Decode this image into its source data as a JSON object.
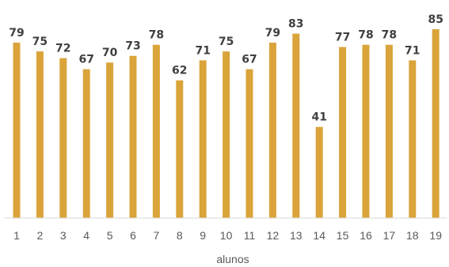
{
  "chart_data": {
    "type": "bar",
    "categories": [
      "1",
      "2",
      "3",
      "4",
      "5",
      "6",
      "7",
      "8",
      "9",
      "10",
      "11",
      "12",
      "13",
      "14",
      "15",
      "16",
      "17",
      "18",
      "19"
    ],
    "values": [
      79,
      75,
      72,
      67,
      70,
      73,
      78,
      62,
      71,
      75,
      67,
      79,
      83,
      41,
      77,
      78,
      78,
      71,
      85
    ],
    "xlabel": "alunos",
    "ylabel": "",
    "ylim": [
      0,
      85
    ],
    "grid": false,
    "legend": "none",
    "color": "#DAA43A",
    "data_labels": true
  }
}
